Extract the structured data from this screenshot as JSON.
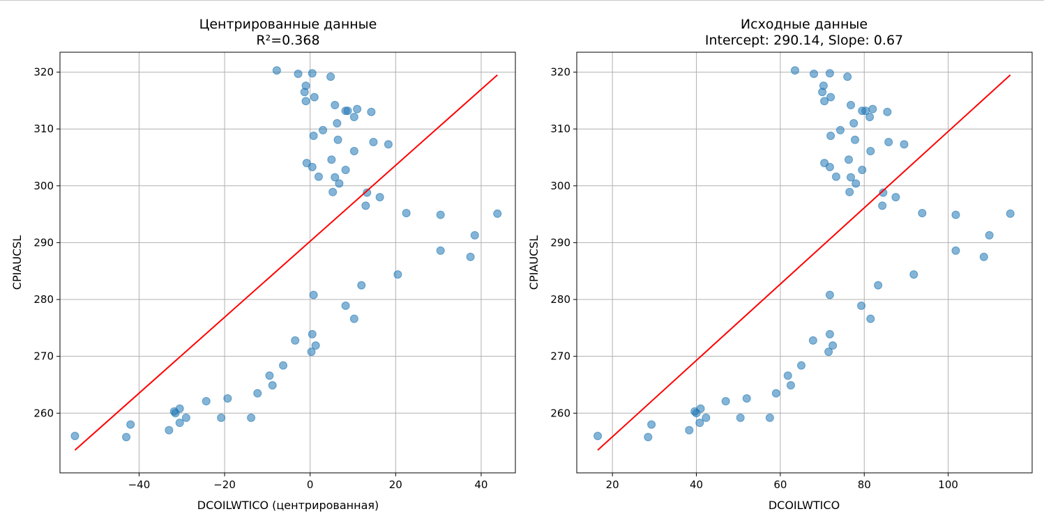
{
  "chart_data": [
    {
      "type": "scatter",
      "title": "Центрированные данные",
      "subtitle": "R²=0.368",
      "xlabel": "DCOILWTICO (центрированная)",
      "ylabel": "CPIAUCSL",
      "xlim": [
        -58.5,
        48
      ],
      "ylim": [
        249.5,
        323.5
      ],
      "xticks": [
        -40,
        -20,
        0,
        20,
        40
      ],
      "yticks": [
        260,
        270,
        280,
        290,
        300,
        310,
        320
      ],
      "grid": true,
      "colors": {
        "points": "#1f77b4",
        "line": "#ff0000"
      },
      "points": [
        [
          -55,
          256.0
        ],
        [
          -43,
          255.8
        ],
        [
          -42,
          258.0
        ],
        [
          -33,
          257.0
        ],
        [
          -31.8,
          260.3
        ],
        [
          -31.5,
          260.0
        ],
        [
          -30.5,
          260.8
        ],
        [
          -30.5,
          258.3
        ],
        [
          -29,
          259.2
        ],
        [
          -24.3,
          262.1
        ],
        [
          -20.8,
          259.2
        ],
        [
          -19.3,
          262.6
        ],
        [
          -13.8,
          259.2
        ],
        [
          -12.3,
          263.5
        ],
        [
          -9.5,
          266.6
        ],
        [
          -8.8,
          264.9
        ],
        [
          -6.3,
          268.4
        ],
        [
          -3.5,
          272.8
        ],
        [
          0.3,
          270.8
        ],
        [
          0.5,
          273.9
        ],
        [
          0.8,
          280.8
        ],
        [
          1.3,
          271.9
        ],
        [
          8.3,
          278.9
        ],
        [
          10.3,
          276.6
        ],
        [
          12.0,
          282.5
        ],
        [
          20.5,
          284.4
        ],
        [
          30.5,
          288.6
        ],
        [
          37.5,
          287.5
        ],
        [
          38.5,
          291.3
        ],
        [
          43.8,
          295.1
        ],
        [
          30.5,
          294.9
        ],
        [
          22.5,
          295.2
        ],
        [
          16.3,
          298.0
        ],
        [
          13.3,
          298.8
        ],
        [
          13.0,
          296.5
        ],
        [
          5.3,
          298.9
        ],
        [
          6.8,
          300.4
        ],
        [
          5.8,
          301.5
        ],
        [
          2.0,
          301.6
        ],
        [
          8.3,
          302.8
        ],
        [
          0.5,
          303.3
        ],
        [
          -0.8,
          304.0
        ],
        [
          5.0,
          304.6
        ],
        [
          10.3,
          306.1
        ],
        [
          14.8,
          307.7
        ],
        [
          18.3,
          307.3
        ],
        [
          0.8,
          308.8
        ],
        [
          6.5,
          308.1
        ],
        [
          3.0,
          309.8
        ],
        [
          6.3,
          311.0
        ],
        [
          10.3,
          312.1
        ],
        [
          8.8,
          313.2
        ],
        [
          8.3,
          313.2
        ],
        [
          11.0,
          313.5
        ],
        [
          14.3,
          313.0
        ],
        [
          5.8,
          314.2
        ],
        [
          1.0,
          315.6
        ],
        [
          -1.0,
          314.9
        ],
        [
          -1.3,
          316.5
        ],
        [
          -1.0,
          317.6
        ],
        [
          -2.8,
          319.7
        ],
        [
          0.5,
          319.8
        ],
        [
          4.8,
          319.2
        ],
        [
          -7.8,
          320.3
        ]
      ],
      "line": {
        "x": [
          -55,
          43.8
        ],
        "y": [
          253.5,
          319.5
        ]
      }
    },
    {
      "type": "scatter",
      "title": "Исходные данные",
      "subtitle": "Intercept: 290.14, Slope: 0.67",
      "xlabel": "DCOILWTICO",
      "ylabel": "CPIAUCSL",
      "xlim": [
        11.5,
        120
      ],
      "ylim": [
        249.5,
        323.5
      ],
      "xticks": [
        20,
        40,
        60,
        80,
        100
      ],
      "yticks": [
        260,
        270,
        280,
        290,
        300,
        310,
        320
      ],
      "grid": true,
      "colors": {
        "points": "#1f77b4",
        "line": "#ff0000"
      },
      "points": [
        [
          16.5,
          256.0
        ],
        [
          28.5,
          255.8
        ],
        [
          29.3,
          258.0
        ],
        [
          38.3,
          257.0
        ],
        [
          39.6,
          260.3
        ],
        [
          40.0,
          260.0
        ],
        [
          41.0,
          260.8
        ],
        [
          40.8,
          258.3
        ],
        [
          42.3,
          259.2
        ],
        [
          47.0,
          262.1
        ],
        [
          50.5,
          259.2
        ],
        [
          52.0,
          262.6
        ],
        [
          57.5,
          259.2
        ],
        [
          59.0,
          263.5
        ],
        [
          61.8,
          266.6
        ],
        [
          62.5,
          264.9
        ],
        [
          65.0,
          268.4
        ],
        [
          67.8,
          272.8
        ],
        [
          71.5,
          270.8
        ],
        [
          71.8,
          273.9
        ],
        [
          71.8,
          280.8
        ],
        [
          72.5,
          271.9
        ],
        [
          79.3,
          278.9
        ],
        [
          81.5,
          276.6
        ],
        [
          83.3,
          282.5
        ],
        [
          91.8,
          284.4
        ],
        [
          101.8,
          288.6
        ],
        [
          108.5,
          287.5
        ],
        [
          109.8,
          291.3
        ],
        [
          114.8,
          295.1
        ],
        [
          101.8,
          294.9
        ],
        [
          93.8,
          295.2
        ],
        [
          87.5,
          298.0
        ],
        [
          84.5,
          298.8
        ],
        [
          84.3,
          296.5
        ],
        [
          76.5,
          298.9
        ],
        [
          78.0,
          300.4
        ],
        [
          76.8,
          301.5
        ],
        [
          73.3,
          301.6
        ],
        [
          79.5,
          302.8
        ],
        [
          71.8,
          303.3
        ],
        [
          70.5,
          304.0
        ],
        [
          76.3,
          304.6
        ],
        [
          81.5,
          306.1
        ],
        [
          85.8,
          307.7
        ],
        [
          89.5,
          307.3
        ],
        [
          72.0,
          308.8
        ],
        [
          77.8,
          308.1
        ],
        [
          74.3,
          309.8
        ],
        [
          77.5,
          311.0
        ],
        [
          81.3,
          312.1
        ],
        [
          80.3,
          313.2
        ],
        [
          79.5,
          313.2
        ],
        [
          82.0,
          313.5
        ],
        [
          85.5,
          313.0
        ],
        [
          76.8,
          314.2
        ],
        [
          72.0,
          315.6
        ],
        [
          70.5,
          314.9
        ],
        [
          70.0,
          316.5
        ],
        [
          70.3,
          317.6
        ],
        [
          68.0,
          319.7
        ],
        [
          71.8,
          319.8
        ],
        [
          76.0,
          319.2
        ],
        [
          63.5,
          320.3
        ]
      ],
      "line": {
        "x": [
          16.5,
          114.8
        ],
        "y": [
          253.5,
          319.5
        ]
      }
    }
  ]
}
